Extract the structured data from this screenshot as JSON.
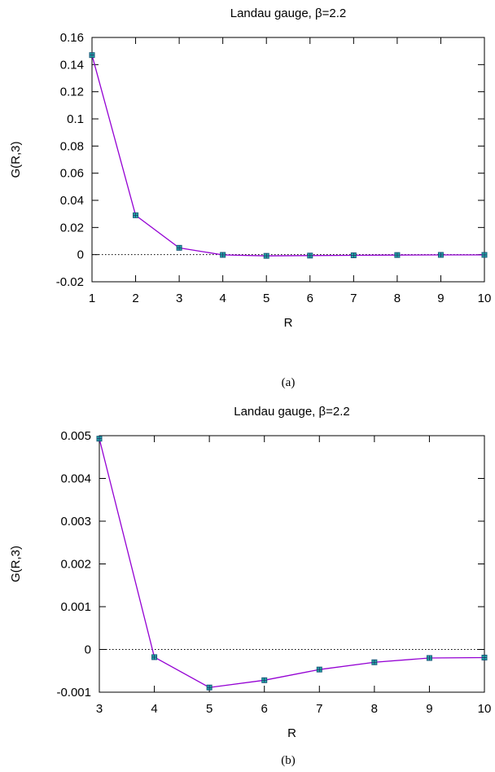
{
  "chart_data": [
    {
      "type": "line",
      "title": "Landau gauge, β=2.2",
      "xlabel": "R",
      "ylabel": "G(R,3)",
      "caption": "(a)",
      "xlim": [
        1,
        10
      ],
      "ylim": [
        -0.02,
        0.16
      ],
      "xticks": [
        "1",
        "2",
        "3",
        "4",
        "5",
        "6",
        "7",
        "8",
        "9",
        "10"
      ],
      "yticks": [
        "-0.02",
        "0",
        "0.02",
        "0.04",
        "0.06",
        "0.08",
        "0.1",
        "0.12",
        "0.14",
        "0.16"
      ],
      "zero_line": true,
      "series": [
        {
          "color": "#9400d3",
          "marker_color": "#20b2aa",
          "x": [
            1,
            2,
            3,
            4,
            5,
            6,
            7,
            8,
            9,
            10
          ],
          "y": [
            0.147,
            0.029,
            0.005,
            -0.0002,
            -0.0009,
            -0.0007,
            -0.0005,
            -0.0003,
            -0.0002,
            -0.0002
          ]
        }
      ]
    },
    {
      "type": "line",
      "title": "Landau gauge, β=2.2",
      "xlabel": "R",
      "ylabel": "G(R,3)",
      "caption": "(b)",
      "xlim": [
        3,
        10
      ],
      "ylim": [
        -0.001,
        0.005
      ],
      "xticks": [
        "3",
        "4",
        "5",
        "6",
        "7",
        "8",
        "9",
        "10"
      ],
      "yticks": [
        "-0.001",
        "0",
        "0.001",
        "0.002",
        "0.003",
        "0.004",
        "0.005"
      ],
      "zero_line": true,
      "series": [
        {
          "color": "#9400d3",
          "marker_color": "#20b2aa",
          "x": [
            3,
            4,
            5,
            6,
            7,
            8,
            9,
            10
          ],
          "y": [
            0.00493,
            -0.00018,
            -0.00089,
            -0.00072,
            -0.00047,
            -0.0003,
            -0.0002,
            -0.00019
          ]
        }
      ]
    }
  ]
}
